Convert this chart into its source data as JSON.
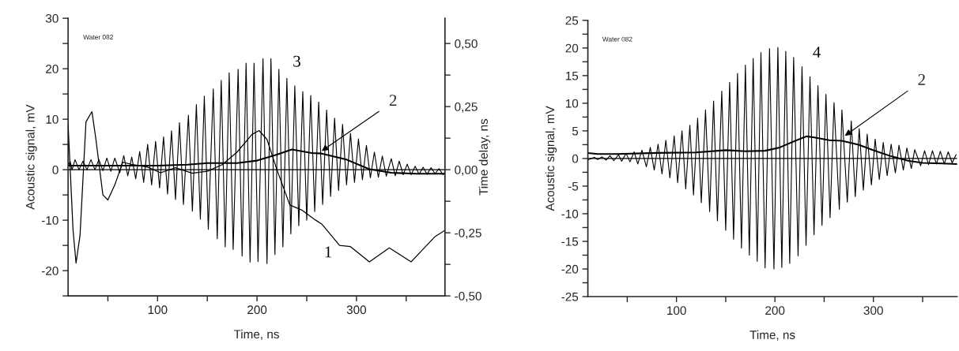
{
  "chart_data": [
    {
      "type": "line",
      "xlabel": "Time, ns",
      "ylabel": "Acoustic signal, mV",
      "y2label": "Time delay, ns",
      "xlim": [
        10,
        389
      ],
      "ylim": [
        -25,
        30
      ],
      "y2lim": [
        -0.5,
        0.6
      ],
      "xticks": [
        {
          "value": 50,
          "label": null
        },
        100,
        {
          "value": 150,
          "label": null
        },
        200,
        {
          "value": 250,
          "label": null
        },
        300,
        {
          "value": 350,
          "label": null
        }
      ],
      "yticks": [
        -20,
        {
          "value": -25,
          "label": null
        },
        {
          "value": -15,
          "label": null
        },
        -10,
        {
          "value": -5,
          "label": null
        },
        0,
        {
          "value": 5,
          "label": null
        },
        10,
        {
          "value": 15,
          "label": null
        },
        20,
        {
          "value": 25,
          "label": null
        },
        30
      ],
      "y2ticks": [
        {
          "value": -0.5,
          "label": "-0,50"
        },
        {
          "value": -0.375,
          "label": null
        },
        {
          "value": -0.25,
          "label": "-0,25"
        },
        {
          "value": -0.125,
          "label": null
        },
        {
          "value": 0,
          "label": "0,00"
        },
        {
          "value": 0.125,
          "label": null
        },
        {
          "value": 0.25,
          "label": "0,25"
        },
        {
          "value": 0.375,
          "label": null
        },
        {
          "value": 0.5,
          "label": "0,50"
        }
      ],
      "grid": false,
      "legend": false,
      "ref_lines": [
        {
          "axis": "y",
          "value": 0,
          "color": "#000000"
        }
      ],
      "series": [
        {
          "color": "#000000",
          "x": [
            10,
            12,
            14,
            17,
            21,
            25,
            29,
            33,
            37,
            41,
            45,
            49,
            53,
            57,
            62,
            66,
            70,
            74,
            78,
            82,
            86,
            90,
            94,
            98,
            102,
            106,
            110,
            114,
            118,
            122,
            126,
            131,
            135,
            139,
            143,
            147,
            151,
            156,
            160,
            164,
            168,
            172,
            176,
            181,
            185,
            189,
            193,
            197,
            201,
            206,
            210,
            214,
            218,
            222,
            226,
            230,
            234,
            238,
            242,
            246,
            250,
            254,
            258,
            262,
            266,
            270,
            274,
            278,
            282,
            286,
            290,
            294,
            298,
            302,
            306,
            310,
            314,
            318,
            322,
            326,
            330,
            335,
            339,
            343,
            347,
            351,
            355,
            359,
            363,
            367,
            371,
            375,
            379,
            383,
            387,
            389
          ],
          "values": [
            0.5,
            1.7,
            0,
            2.0,
            0,
            1.7,
            0,
            2.0,
            0,
            2.0,
            -0.2,
            2.3,
            -0.3,
            2.3,
            -0.6,
            2.8,
            -1.2,
            2.5,
            -1.8,
            3.6,
            -2.5,
            5.0,
            -3.0,
            5.6,
            -3.6,
            6.5,
            -4.8,
            7.7,
            -5.9,
            9.3,
            -6.9,
            10.8,
            -8.2,
            12.9,
            -9.8,
            14.6,
            -11.8,
            16.0,
            -13.7,
            17.7,
            -15.3,
            19.2,
            -15.8,
            19.9,
            -17.1,
            21.1,
            -18.3,
            21.1,
            -18.2,
            22.0,
            -18.6,
            22.0,
            -16.8,
            19.9,
            -15.3,
            18.1,
            -12.7,
            16.6,
            -11.1,
            15.5,
            -10.0,
            14.7,
            -8.3,
            13.4,
            -6.9,
            11.8,
            -5.3,
            10.2,
            -4.1,
            9.0,
            -3.0,
            7.2,
            -2.5,
            6.1,
            -2.0,
            4.8,
            -1.6,
            3.5,
            -1.5,
            2.7,
            -1.3,
            2.2,
            -1.2,
            1.7,
            -1.0,
            1.1,
            -1.0,
            0.7,
            -0.9,
            0.5,
            -0.9,
            0.4,
            -0.8,
            0.2,
            -1.0,
            -0.5
          ]
        },
        {
          "color": "#000000",
          "x": [
            10,
            40,
            70,
            100,
            130,
            150,
            180,
            200,
            220,
            235,
            255,
            265,
            290,
            313,
            335,
            360,
            389
          ],
          "values": [
            0.8,
            0.8,
            0.8,
            0.8,
            1.0,
            1.3,
            1.3,
            1.8,
            3.0,
            4.0,
            3.3,
            3.2,
            2.0,
            0.1,
            -0.6,
            -0.8,
            -0.8
          ]
        },
        {
          "color": "#000000",
          "axis": "y2",
          "x": [
            10,
            15,
            18,
            22,
            28,
            34,
            38,
            45,
            50,
            57,
            65,
            75,
            90,
            103,
            118,
            135,
            150,
            165,
            180,
            195,
            202,
            210,
            220,
            233,
            245,
            259,
            265,
            283,
            294,
            313,
            333,
            355,
            379,
            389
          ],
          "values": [
            0.18,
            -0.24,
            -0.37,
            -0.26,
            0.19,
            0.23,
            0.12,
            -0.1,
            -0.12,
            -0.06,
            0.03,
            0.02,
            0.01,
            -0.012,
            0.008,
            -0.014,
            -0.006,
            0.02,
            0.07,
            0.14,
            0.155,
            0.12,
            0,
            -0.14,
            -0.16,
            -0.2,
            -0.215,
            -0.3,
            -0.305,
            -0.365,
            -0.31,
            -0.365,
            -0.265,
            -0.24
          ]
        }
      ],
      "annotations": [
        "Water 082",
        "3",
        {
          "text": "2",
          "x": 265,
          "y": 3.7
        },
        "1"
      ]
    },
    {
      "type": "line",
      "xlabel": "Time, ns",
      "ylabel": "Acoustic signal, mV",
      "xlim": [
        10,
        385
      ],
      "ylim": [
        -25,
        25
      ],
      "xticks": [
        {
          "value": 50,
          "label": null
        },
        100,
        {
          "value": 150,
          "label": null
        },
        200,
        {
          "value": 250,
          "label": null
        },
        300,
        {
          "value": 350,
          "label": null
        }
      ],
      "yticks": [
        -25,
        {
          "value": -22.5,
          "label": null
        },
        -20,
        {
          "value": -17.5,
          "label": null
        },
        -15,
        {
          "value": -12.5,
          "label": null
        },
        -10,
        {
          "value": -7.5,
          "label": null
        },
        -5,
        {
          "value": -2.5,
          "label": null
        },
        0,
        {
          "value": 2.5,
          "label": null
        },
        5,
        {
          "value": 7.5,
          "label": null
        },
        10,
        {
          "value": 12.5,
          "label": null
        },
        15,
        {
          "value": 17.5,
          "label": null
        },
        20,
        {
          "value": 22.5,
          "label": null
        },
        25
      ],
      "grid": false,
      "legend": false,
      "ref_lines": [
        {
          "axis": "y",
          "value": 0,
          "color": "#000000"
        }
      ],
      "series": [
        {
          "color": "#000000",
          "x": [
            10,
            12,
            16.6,
            20,
            24.5,
            28.5,
            32.4,
            36.4,
            41.1,
            44.3,
            48.8,
            52.8,
            57,
            60.7,
            64.9,
            69.4,
            73.4,
            77.4,
            81.3,
            85.3,
            89.2,
            93.3,
            97.7,
            101.2,
            105.6,
            109.4,
            113.6,
            117.3,
            121.5,
            125.2,
            129.5,
            133.7,
            137.7,
            141.6,
            146,
            150,
            154,
            158,
            162,
            166,
            170,
            174,
            177.9,
            182,
            185.8,
            190,
            194.5,
            199,
            203,
            207,
            211,
            215,
            219,
            223.5,
            227.5,
            231.6,
            235.6,
            239.7,
            243.7,
            247.8,
            251.8,
            256,
            260,
            265.4,
            268,
            273.5,
            277.5,
            281.6,
            285.6,
            289.8,
            293.7,
            298,
            301.8,
            306,
            310,
            314,
            318,
            322.3,
            326,
            330.4,
            334,
            338.5,
            342,
            348,
            352,
            356,
            360,
            364,
            368,
            372,
            376,
            380,
            384
          ],
          "values": [
            -0.3,
            -0.1,
            0.2,
            -0.2,
            0.3,
            -0.3,
            0.5,
            -0.4,
            0.7,
            -0.5,
            0.9,
            -0.6,
            1.2,
            -1.0,
            1.5,
            -1.5,
            2.0,
            -2.1,
            2.6,
            -2.8,
            3.3,
            -3.5,
            4.1,
            -4.4,
            5.0,
            -5.5,
            6.0,
            -6.6,
            7.3,
            -8.0,
            8.8,
            -9.6,
            10.4,
            -11.3,
            12.2,
            -13.0,
            13.8,
            -14.6,
            15.4,
            -16.2,
            16.9,
            -17.5,
            18.1,
            -18.6,
            19.2,
            -19.8,
            19.9,
            -20.0,
            20.1,
            -19.7,
            19.4,
            -19.0,
            18.3,
            -17.6,
            16.6,
            -15.7,
            14.8,
            -13.8,
            13.2,
            -12.1,
            11.6,
            -10.7,
            10.1,
            -9.2,
            8.8,
            -7.9,
            6.8,
            -6.9,
            5.4,
            -5.7,
            4.4,
            -4.8,
            3.5,
            -3.8,
            2.9,
            -3.1,
            2.6,
            -2.6,
            2.4,
            -2.1,
            1.9,
            -1.8,
            1.6,
            -1.3,
            1.4,
            -1.1,
            1.4,
            -1.0,
            1.3,
            -1.0,
            1.2,
            -0.8,
            0.7
          ]
        },
        {
          "color": "#000000",
          "x": [
            10,
            20,
            40,
            80,
            120,
            150,
            170,
            190,
            205,
            218,
            232,
            240,
            255,
            268,
            285,
            300,
            318,
            335,
            350,
            370,
            385
          ],
          "values": [
            1.0,
            0.8,
            0.8,
            1.0,
            1.1,
            1.5,
            1.3,
            1.4,
            2.0,
            3.0,
            4.0,
            3.8,
            3.3,
            3.2,
            2.5,
            1.5,
            0.4,
            -0.4,
            -0.8,
            -0.9,
            -1.0
          ]
        }
      ],
      "annotations": [
        "Water 082",
        "4",
        {
          "text": "2",
          "x": 271,
          "y": 4.1
        }
      ]
    }
  ]
}
